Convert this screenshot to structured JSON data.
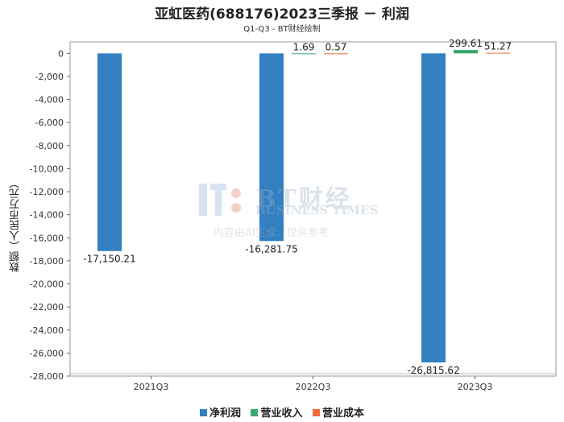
{
  "title": "亚虹医药(688176)2023三季报 － 利润",
  "subtitle": "Q1-Q3 - BT财经绘制",
  "watermark": {
    "name": "BT财经",
    "english": "BUSINESS TIMES",
    "note": "内容由AI生成，仅供参考"
  },
  "chart_data": {
    "type": "bar",
    "title": "亚虹医药(688176)2023三季报 － 利润",
    "subtitle": "Q1-Q3 - BT财经绘制",
    "ylabel": "数额（人民币万元）",
    "xlabel": "",
    "categories": [
      "2021Q3",
      "2022Q3",
      "2023Q3"
    ],
    "ylim": [
      -28000,
      1000
    ],
    "yticks": [
      0,
      -2000,
      -4000,
      -6000,
      -8000,
      -10000,
      -12000,
      -14000,
      -16000,
      -18000,
      -20000,
      -22000,
      -24000,
      -26000,
      -28000
    ],
    "ytick_labels": [
      "0",
      "-2,000",
      "-4,000",
      "-6,000",
      "-8,000",
      "-10,000",
      "-12,000",
      "-14,000",
      "-16,000",
      "-18,000",
      "-20,000",
      "-22,000",
      "-24,000",
      "-26,000",
      "-28,000"
    ],
    "legend_position": "bottom",
    "grid": false,
    "series": [
      {
        "name": "净利润",
        "color": "#3380c0",
        "values": [
          -17150.21,
          -16281.75,
          -26815.62
        ],
        "labels": [
          "-17,150.21",
          "-16,281.75",
          "-26,815.62"
        ]
      },
      {
        "name": "营业收入",
        "color": "#3aaa6e",
        "values": [
          null,
          1.69,
          299.61
        ],
        "labels": [
          "",
          "1.69",
          "299.61"
        ]
      },
      {
        "name": "营业成本",
        "color": "#f26b38",
        "values": [
          null,
          0.57,
          51.27
        ],
        "labels": [
          "",
          "0.57",
          "51.27"
        ]
      }
    ]
  }
}
